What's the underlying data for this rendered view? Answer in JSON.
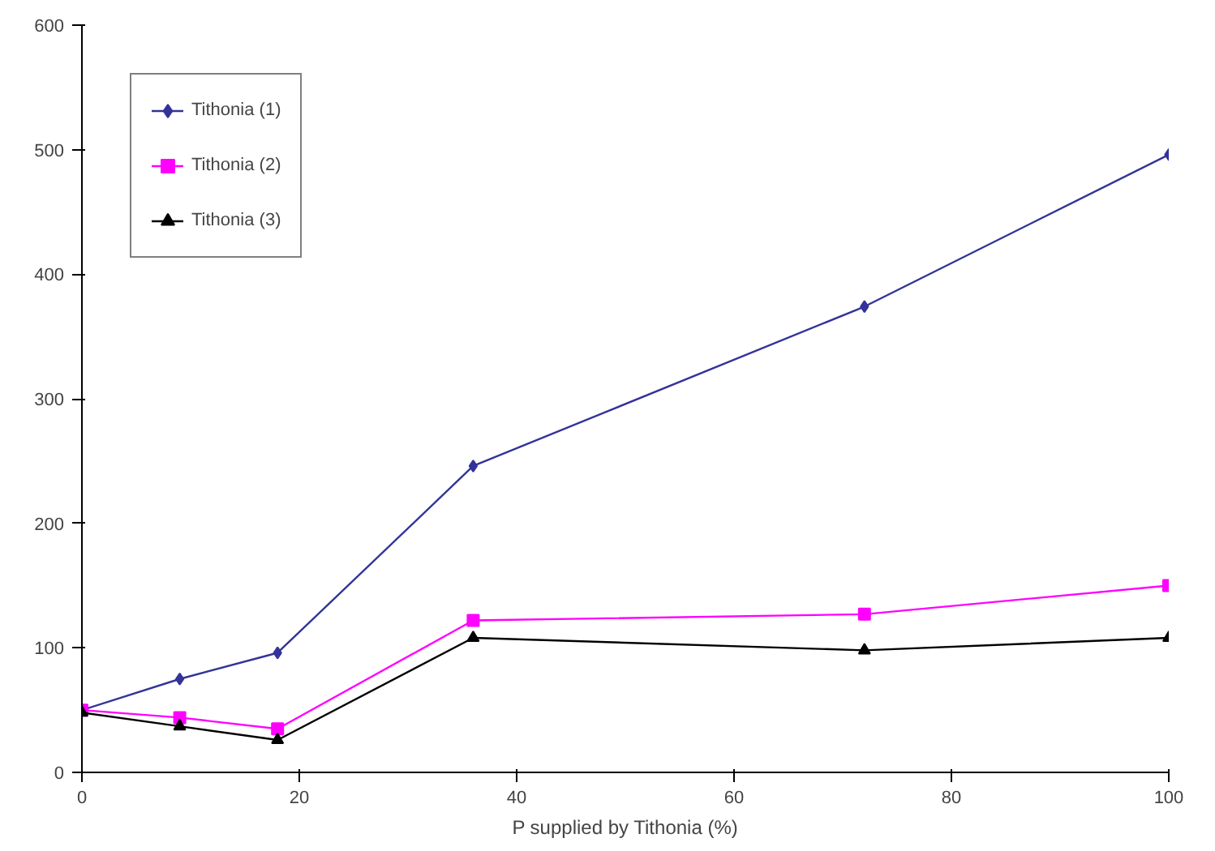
{
  "chart_data": {
    "type": "line",
    "xlabel": "P supplied by Tithonia (%)",
    "x": [
      0,
      9,
      18,
      36,
      72,
      100
    ],
    "series": [
      {
        "name": "Tithonia (1)",
        "color": "#333399",
        "marker": "diamond",
        "values": [
          50,
          75,
          96,
          246,
          374,
          496
        ]
      },
      {
        "name": "Tithonia (2)",
        "color": "#ff00ff",
        "marker": "square",
        "values": [
          50,
          44,
          35,
          122,
          127,
          150
        ]
      },
      {
        "name": "Tithonia (3)",
        "color": "#000000",
        "marker": "triangle",
        "values": [
          48,
          37,
          26,
          108,
          98,
          108
        ]
      }
    ],
    "xlim": [
      0,
      100
    ],
    "xticks": [
      0,
      20,
      40,
      60,
      80,
      100
    ],
    "ylim": [
      0,
      600
    ],
    "yticks": [
      0,
      100,
      200,
      300,
      400,
      500,
      600
    ],
    "grid": false,
    "legend": "top left",
    "line_style": "solid"
  }
}
